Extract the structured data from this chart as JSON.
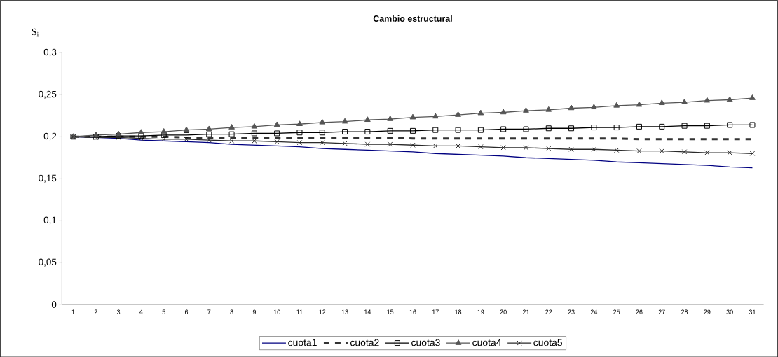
{
  "chart_data": {
    "type": "line",
    "title": "Cambio estructural",
    "ylabel": "S$_{i}$",
    "categories": [
      "1",
      "2",
      "3",
      "4",
      "5",
      "6",
      "7",
      "8",
      "9",
      "10",
      "11",
      "12",
      "13",
      "14",
      "15",
      "16",
      "17",
      "18",
      "19",
      "20",
      "21",
      "22",
      "23",
      "24",
      "25",
      "26",
      "27",
      "28",
      "29",
      "30",
      "31"
    ],
    "ylim": [
      0,
      0.3
    ],
    "yticks": [
      0,
      {
        "value": 0.05,
        "label": "0,05"
      },
      {
        "value": 0.1,
        "label": "0,1"
      },
      {
        "value": 0.15,
        "label": "0,15"
      },
      {
        "value": 0.2,
        "label": "0,2"
      },
      {
        "value": 0.25,
        "label": "0,25"
      },
      {
        "value": 0.3,
        "label": "0,3"
      }
    ],
    "grid": false,
    "legend": "bottom",
    "series": [
      {
        "name": "cuota1",
        "color": "#000080",
        "marker": "none",
        "line_style": "solid",
        "values": [
          0.2,
          0.199,
          0.198,
          0.196,
          0.195,
          0.194,
          0.193,
          0.191,
          0.19,
          0.189,
          0.188,
          0.186,
          0.185,
          0.184,
          0.183,
          0.182,
          0.18,
          0.179,
          0.178,
          0.177,
          0.175,
          0.174,
          0.173,
          0.172,
          0.17,
          0.169,
          0.168,
          0.167,
          0.166,
          0.164,
          0.163
        ]
      },
      {
        "name": "cuota2",
        "color": "#333333",
        "marker": "none",
        "line_style": "dashed",
        "values": [
          0.2,
          0.2,
          0.2,
          0.2,
          0.2,
          0.199,
          0.199,
          0.199,
          0.199,
          0.199,
          0.199,
          0.199,
          0.199,
          0.199,
          0.199,
          0.198,
          0.198,
          0.198,
          0.198,
          0.198,
          0.198,
          0.198,
          0.198,
          0.198,
          0.198,
          0.197,
          0.197,
          0.197,
          0.197,
          0.197,
          0.197
        ]
      },
      {
        "name": "cuota3",
        "color": "#000000",
        "marker": "square",
        "line_style": "solid",
        "values": [
          0.2,
          0.2,
          0.201,
          0.201,
          0.202,
          0.202,
          0.203,
          0.203,
          0.204,
          0.204,
          0.205,
          0.205,
          0.206,
          0.206,
          0.207,
          0.207,
          0.208,
          0.208,
          0.208,
          0.209,
          0.209,
          0.21,
          0.21,
          0.211,
          0.211,
          0.212,
          0.212,
          0.213,
          0.213,
          0.214,
          0.214
        ]
      },
      {
        "name": "cuota4",
        "color": "#555555",
        "marker": "triangle",
        "line_style": "solid",
        "values": [
          0.2,
          0.202,
          0.203,
          0.205,
          0.206,
          0.208,
          0.209,
          0.211,
          0.212,
          0.214,
          0.215,
          0.217,
          0.218,
          0.22,
          0.221,
          0.223,
          0.224,
          0.226,
          0.228,
          0.229,
          0.231,
          0.232,
          0.234,
          0.235,
          0.237,
          0.238,
          0.24,
          0.241,
          0.243,
          0.244,
          0.246
        ]
      },
      {
        "name": "cuota5",
        "color": "#2a2a2a",
        "marker": "cross",
        "line_style": "solid",
        "values": [
          0.2,
          0.199,
          0.199,
          0.198,
          0.197,
          0.197,
          0.196,
          0.195,
          0.195,
          0.194,
          0.193,
          0.193,
          0.192,
          0.191,
          0.191,
          0.19,
          0.189,
          0.189,
          0.188,
          0.187,
          0.187,
          0.186,
          0.185,
          0.185,
          0.184,
          0.183,
          0.183,
          0.182,
          0.181,
          0.181,
          0.18
        ]
      }
    ]
  }
}
